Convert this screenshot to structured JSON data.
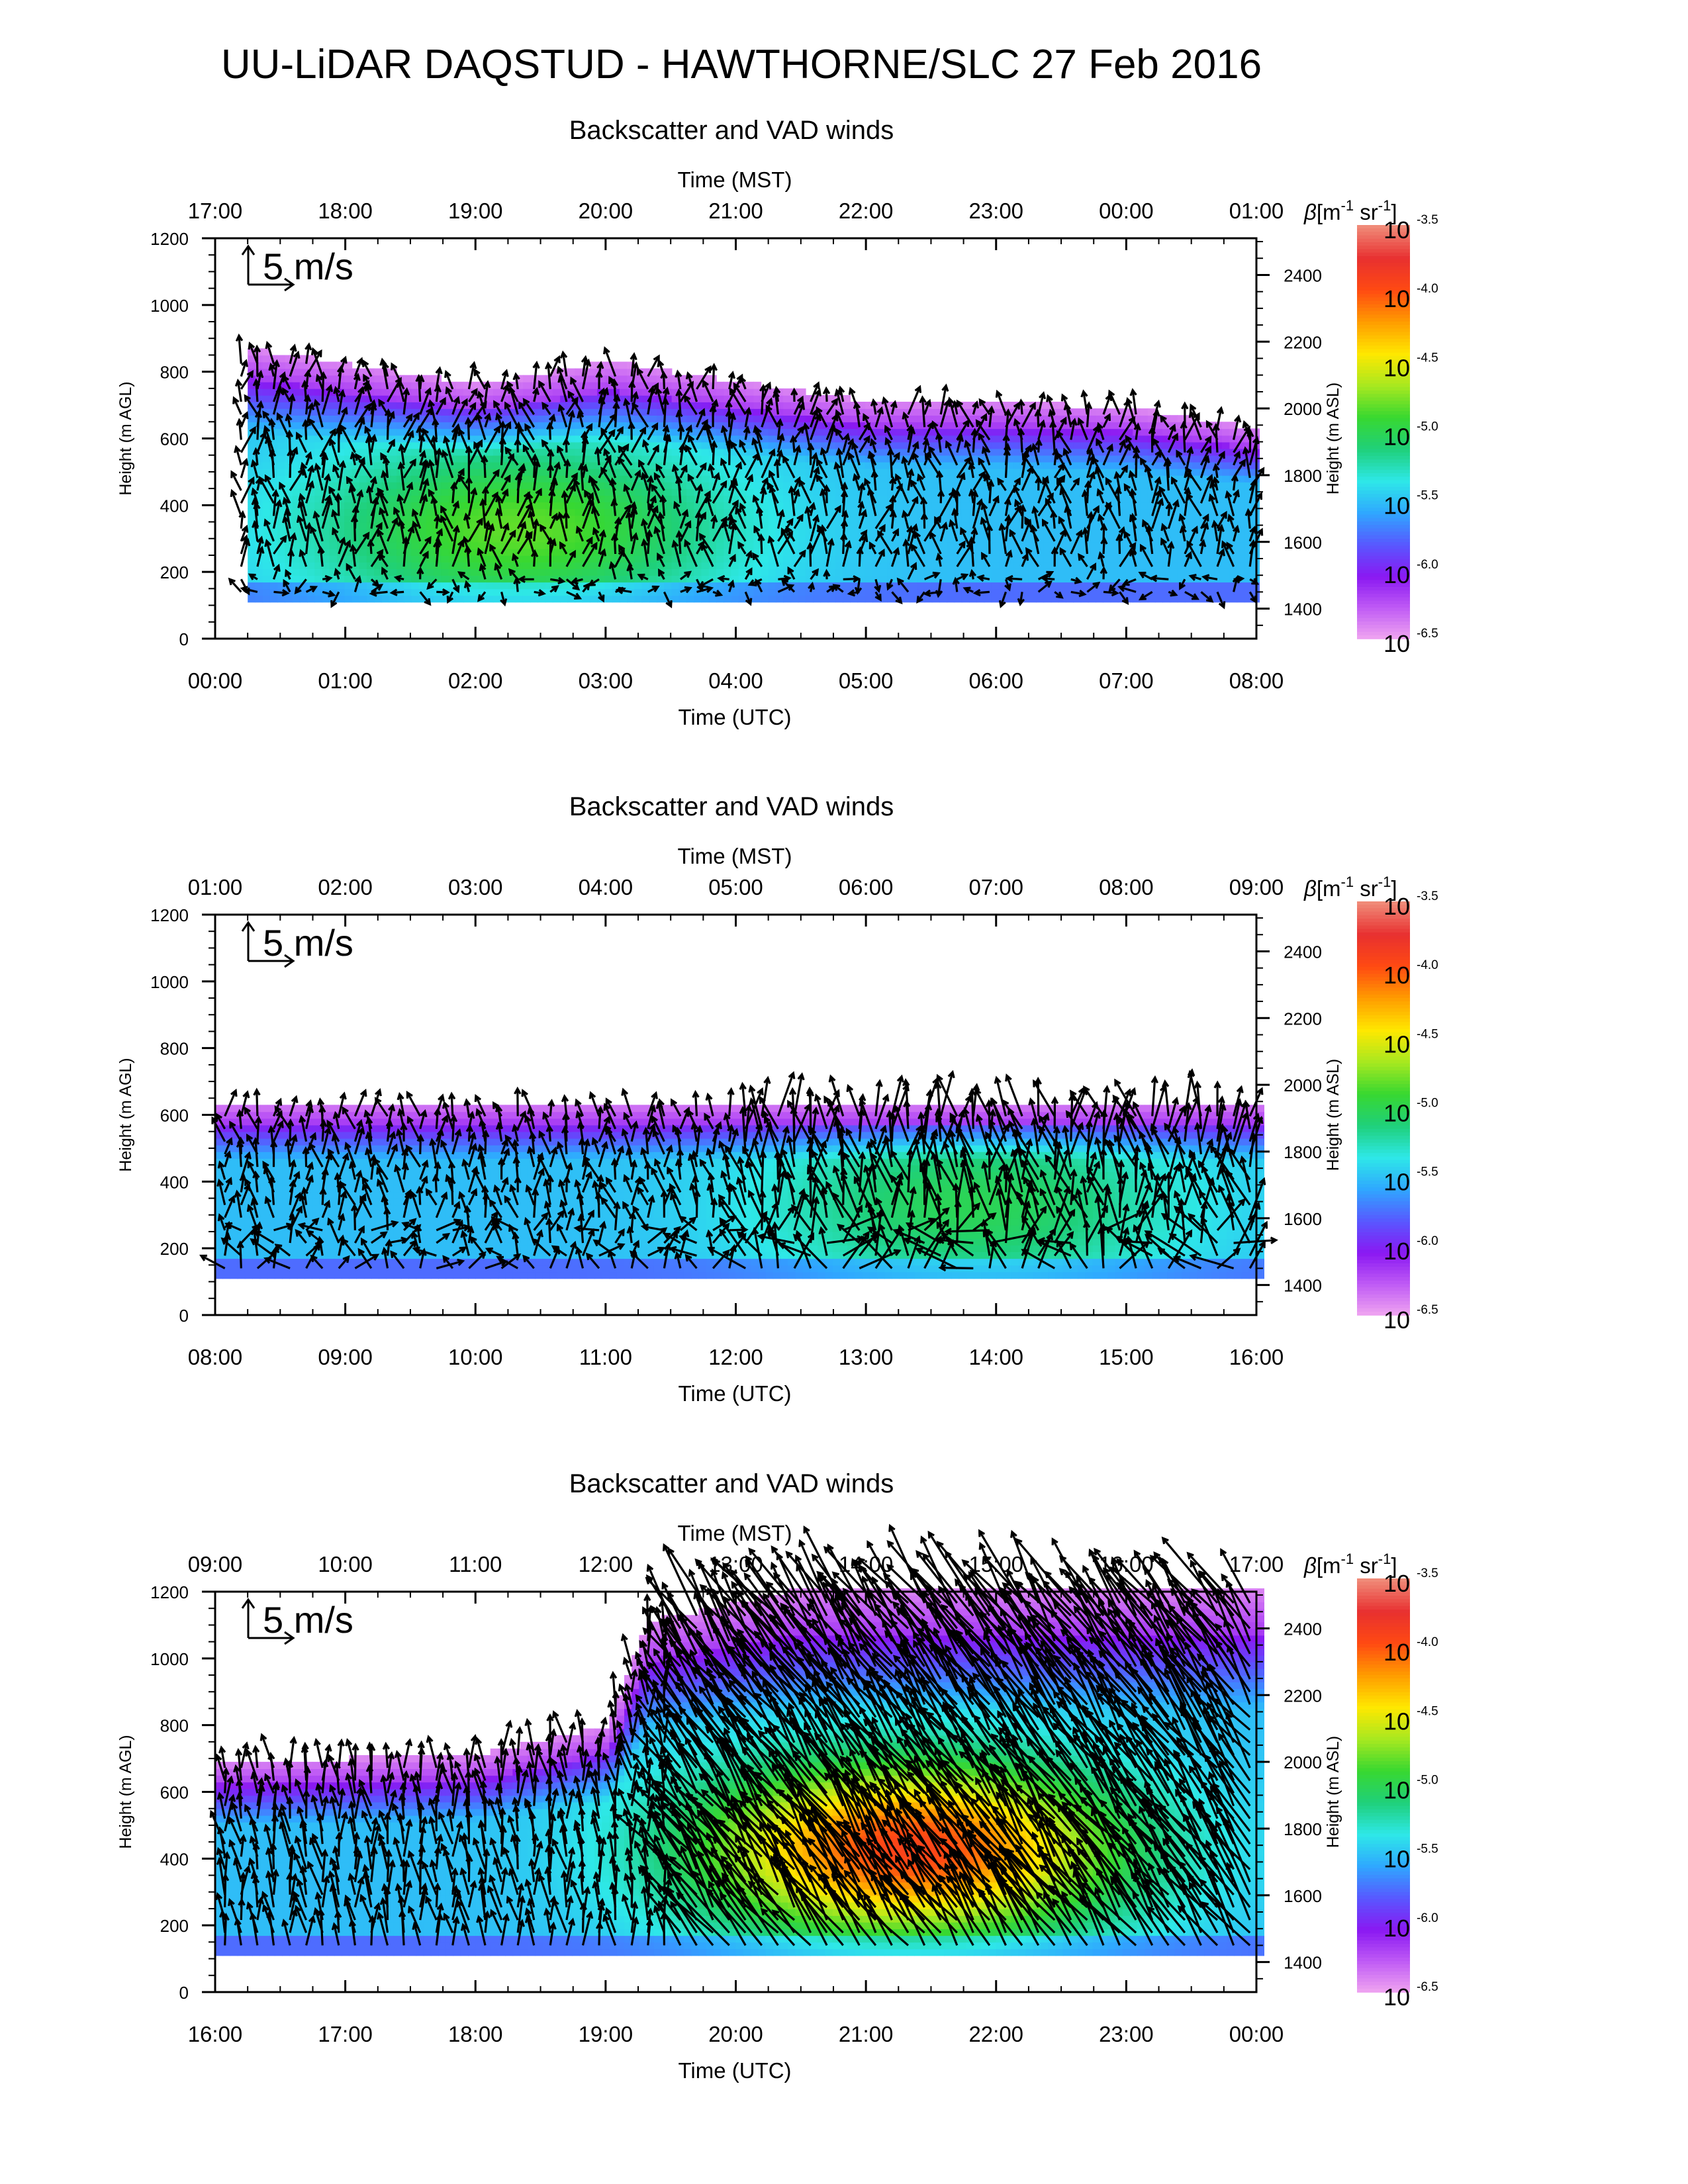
{
  "title": "UU-LiDAR DAQSTUD - HAWTHORNE/SLC 27 Feb 2016",
  "colors": {
    "scale": [
      "#f2a8f0",
      "#c05cf5",
      "#8a18f2",
      "#5858ff",
      "#2fa7ff",
      "#2ee8e8",
      "#1fd07a",
      "#38d830",
      "#a8e820",
      "#ffe800",
      "#ff9c00",
      "#ff4a12",
      "#e83030",
      "#f08a78"
    ],
    "arrow": "#000000"
  },
  "colorbar": {
    "label_beta": "β",
    "label_unit": "[m",
    "label_sup1": "-1",
    "label_mid": " sr",
    "label_sup2": "-1",
    "label_close": "]",
    "ticks": [
      {
        "base": "10",
        "exp": "-3.5",
        "value": -3.5
      },
      {
        "base": "10",
        "exp": "-4.0",
        "value": -4.0
      },
      {
        "base": "10",
        "exp": "-4.5",
        "value": -4.5
      },
      {
        "base": "10",
        "exp": "-5.0",
        "value": -5.0
      },
      {
        "base": "10",
        "exp": "-5.5",
        "value": -5.5
      },
      {
        "base": "10",
        "exp": "-6.0",
        "value": -6.0
      },
      {
        "base": "10",
        "exp": "-6.5",
        "value": -6.5
      }
    ],
    "range": [
      -6.5,
      -3.5
    ]
  },
  "chart_data": [
    {
      "type": "heatmap",
      "subtitle": "Backscatter and VAD winds",
      "top_axis_label": "Time (MST)",
      "top_ticks": [
        "17:00",
        "18:00",
        "19:00",
        "20:00",
        "21:00",
        "22:00",
        "23:00",
        "00:00",
        "01:00"
      ],
      "xlabel": "Time (UTC)",
      "x_ticks": [
        "00:00",
        "01:00",
        "02:00",
        "03:00",
        "04:00",
        "05:00",
        "06:00",
        "07:00",
        "08:00"
      ],
      "ylabel": "Height (m AGL)",
      "y_ticks": [
        0,
        200,
        400,
        600,
        800,
        1000,
        1200
      ],
      "ylim": [
        0,
        1200
      ],
      "y2label": "Height (m ASL)",
      "y2_ticks": [
        1400,
        1600,
        1800,
        2000,
        2200,
        2400
      ],
      "y2lim": [
        1310,
        2510
      ],
      "xlim_hours": [
        0,
        8
      ],
      "scale_label": "5 m/s",
      "wind_field": "mostly northerly 2-4 m/s, weak and variable near 100-200 m",
      "backscatter_layer": {
        "base_m": 110,
        "top_m_by_hour": [
          [
            0.25,
            860
          ],
          [
            2,
            750
          ],
          [
            3,
            820
          ],
          [
            4,
            760
          ],
          [
            5,
            700
          ],
          [
            6,
            700
          ],
          [
            7,
            680
          ],
          [
            8,
            620
          ]
        ],
        "peak_log10": -5.3,
        "peak_at": [
          2.3,
          320
        ]
      }
    },
    {
      "type": "heatmap",
      "subtitle": "Backscatter and VAD winds",
      "top_axis_label": "Time (MST)",
      "top_ticks": [
        "01:00",
        "02:00",
        "03:00",
        "04:00",
        "05:00",
        "06:00",
        "07:00",
        "08:00",
        "09:00"
      ],
      "xlabel": "Time (UTC)",
      "x_ticks": [
        "08:00",
        "09:00",
        "10:00",
        "11:00",
        "12:00",
        "13:00",
        "14:00",
        "15:00",
        "16:00"
      ],
      "ylabel": "Height (m AGL)",
      "y_ticks": [
        0,
        200,
        400,
        600,
        800,
        1000,
        1200
      ],
      "ylim": [
        0,
        1200
      ],
      "y2label": "Height (m ASL)",
      "y2_ticks": [
        1400,
        1600,
        1800,
        2000,
        2200,
        2400
      ],
      "y2lim": [
        1310,
        2510
      ],
      "xlim_hours": [
        8,
        16
      ],
      "scale_label": "5 m/s",
      "wind_field": "northerly 2-4 m/s before 12:00 UTC, strengthening to 5-7 m/s aloft after 12:00 UTC",
      "backscatter_layer": {
        "base_m": 110,
        "top_m_by_hour": [
          [
            8,
            630
          ],
          [
            16,
            630
          ]
        ],
        "peak_log10": -5.5,
        "peak_at": [
          13.8,
          320
        ]
      }
    },
    {
      "type": "heatmap",
      "subtitle": "Backscatter and VAD winds",
      "top_axis_label": "Time (MST)",
      "top_ticks": [
        "09:00",
        "10:00",
        "11:00",
        "12:00",
        "13:00",
        "14:00",
        "15:00",
        "16:00",
        "17:00"
      ],
      "xlabel": "Time (UTC)",
      "x_ticks": [
        "16:00",
        "17:00",
        "18:00",
        "19:00",
        "20:00",
        "21:00",
        "22:00",
        "23:00",
        "00:00"
      ],
      "ylabel": "Height (m AGL)",
      "y_ticks": [
        0,
        200,
        400,
        600,
        800,
        1000,
        1200
      ],
      "ylim": [
        0,
        1200
      ],
      "y2label": "Height (m ASL)",
      "y2_ticks": [
        1400,
        1600,
        1800,
        2000,
        2200,
        2400
      ],
      "y2lim": [
        1310,
        2510
      ],
      "xlim_hours": [
        16,
        24
      ],
      "scale_label": "5 m/s",
      "wind_field": "northerly 3-5 m/s before 19:30 UTC, strong north-westerly 8-12 m/s through deep layer after 19:30 UTC",
      "backscatter_layer": {
        "base_m": 110,
        "top_m_by_hour": [
          [
            16,
            680
          ],
          [
            18,
            700
          ],
          [
            19,
            790
          ],
          [
            19.3,
            1100
          ],
          [
            20.5,
            1200
          ],
          [
            24,
            1200
          ]
        ],
        "peak_log10": -4.4,
        "peak_at": [
          21.3,
          420
        ]
      }
    }
  ]
}
